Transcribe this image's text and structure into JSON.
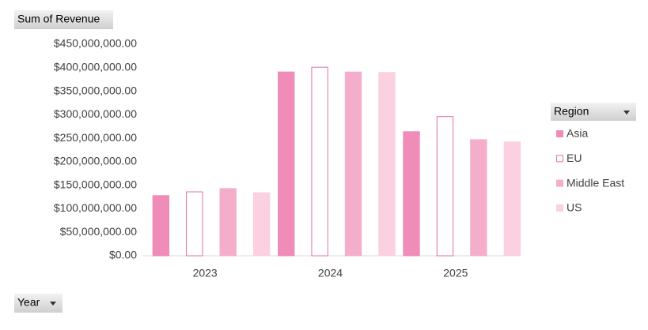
{
  "chart_data": {
    "type": "bar",
    "title": "Sum of Revenue",
    "xlabel": "Year",
    "legend_title": "Region",
    "categories": [
      "2023",
      "2024",
      "2025"
    ],
    "series": [
      {
        "name": "Asia",
        "color": "#f08cb8",
        "values": [
          128000000,
          391000000,
          264000000
        ]
      },
      {
        "name": "EU",
        "color": "#ffffff",
        "edgecolor": "#e070a8",
        "values": [
          136000000,
          401000000,
          296000000
        ]
      },
      {
        "name": "Middle East",
        "color": "#f4aecb",
        "values": [
          143000000,
          391000000,
          247000000
        ]
      },
      {
        "name": "US",
        "color": "#fbd0e0",
        "values": [
          134000000,
          390000000,
          242000000
        ]
      }
    ],
    "ylim": [
      0,
      450000000
    ],
    "yticks": [
      {
        "value": 0,
        "label": "$0.00"
      },
      {
        "value": 50000000,
        "label": "$50,000,000.00"
      },
      {
        "value": 100000000,
        "label": "$100,000,000.00"
      },
      {
        "value": 150000000,
        "label": "$150,000,000.00"
      },
      {
        "value": 200000000,
        "label": "$200,000,000.00"
      },
      {
        "value": 250000000,
        "label": "$250,000,000.00"
      },
      {
        "value": 300000000,
        "label": "$300,000,000.00"
      },
      {
        "value": 350000000,
        "label": "$350,000,000.00"
      },
      {
        "value": 400000000,
        "label": "$400,000,000.00"
      },
      {
        "value": 450000000,
        "label": "$450,000,000.00"
      }
    ],
    "grid": false,
    "legend": "right"
  }
}
